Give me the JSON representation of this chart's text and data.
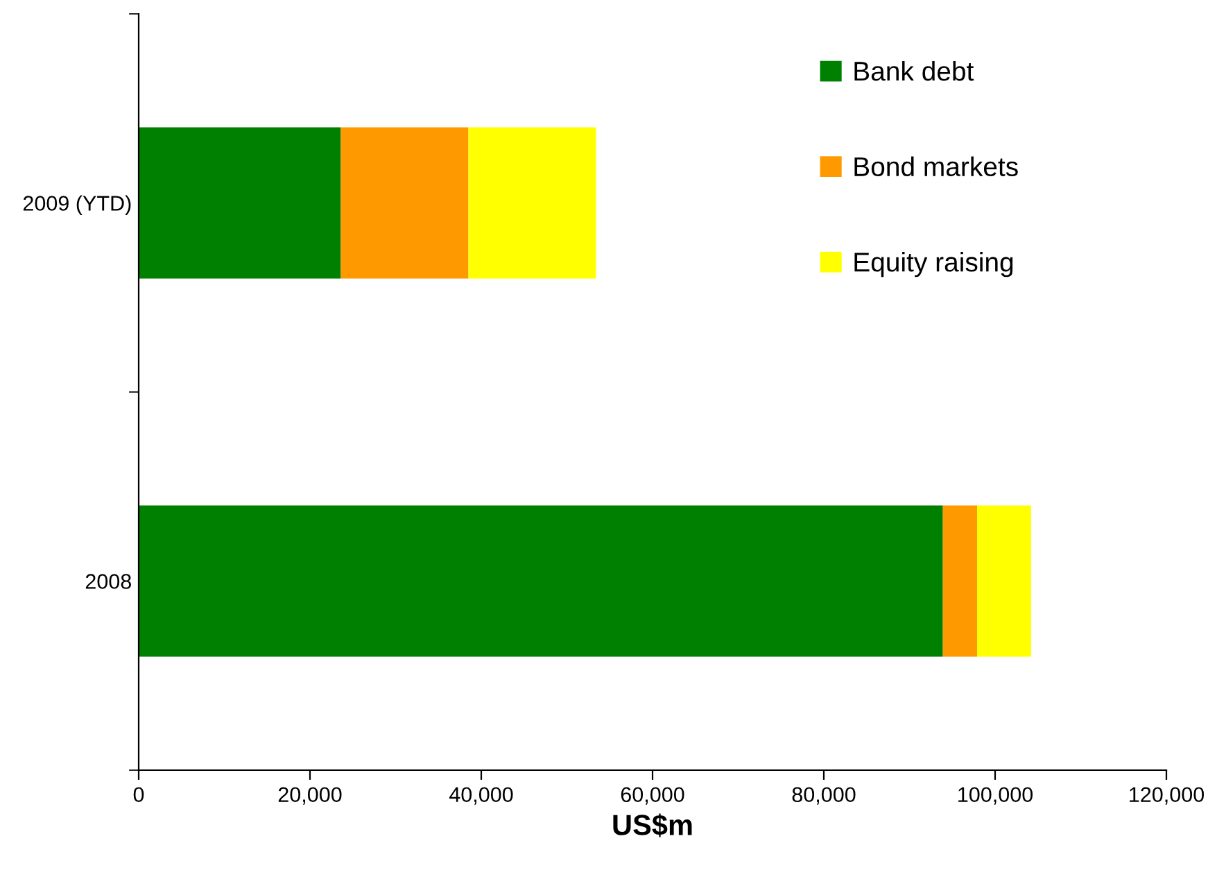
{
  "chart_data": {
    "type": "bar",
    "orientation": "horizontal",
    "stacked": true,
    "categories": [
      "2009 (YTD)",
      "2008"
    ],
    "series": [
      {
        "name": "Bank debt",
        "color": "#008000",
        "values": [
          23600,
          93900
        ]
      },
      {
        "name": "Bond markets",
        "color": "#ff9900",
        "values": [
          14900,
          4000
        ]
      },
      {
        "name": "Equity raising",
        "color": "#ffff00",
        "values": [
          14900,
          6300
        ]
      }
    ],
    "xlabel": "US$m",
    "xlim": [
      0,
      120000
    ],
    "xticks": [
      {
        "value": 0,
        "label": "0"
      },
      {
        "value": 20000,
        "label": "20,000"
      },
      {
        "value": 40000,
        "label": "40,000"
      },
      {
        "value": 60000,
        "label": "60,000"
      },
      {
        "value": 80000,
        "label": "80,000"
      },
      {
        "value": 100000,
        "label": "100,000"
      },
      {
        "value": 120000,
        "label": "120,000"
      }
    ],
    "grid": false,
    "legend": "top right"
  }
}
